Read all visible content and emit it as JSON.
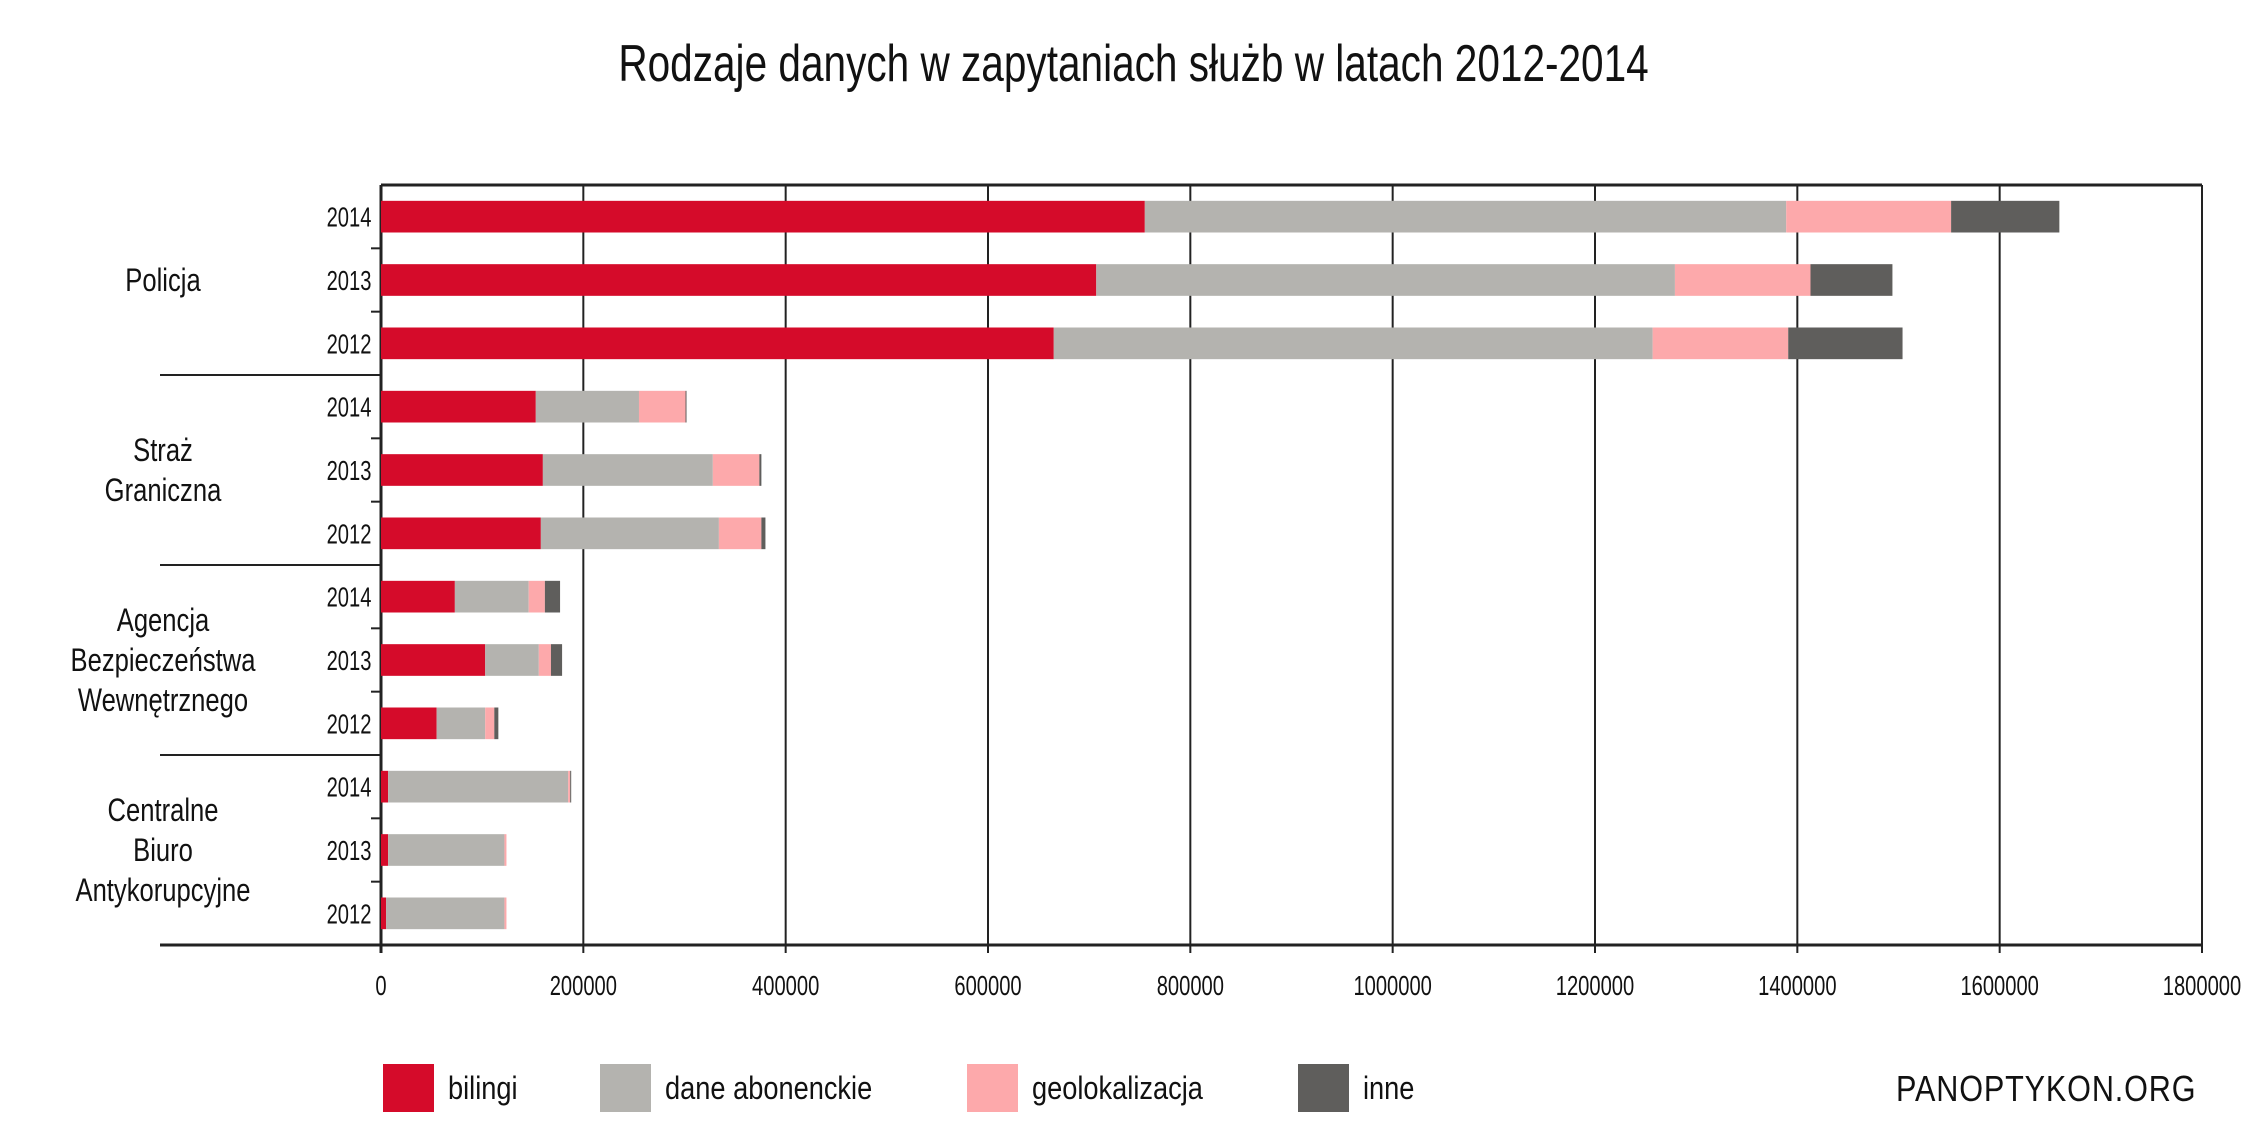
{
  "chart_data": {
    "type": "bar",
    "orientation": "horizontal",
    "stacked": true,
    "title": "Rodzaje danych w zapytaniach służb w latach 2012-2014",
    "xlabel": "",
    "ylabel": "",
    "xlim": [
      0,
      1800000
    ],
    "xticks": [
      "0",
      "200000",
      "400000",
      "600000",
      "800000",
      "1000000",
      "1200000",
      "1400000",
      "1600000",
      "1800000"
    ],
    "grid": true,
    "legend_position": "bottom",
    "groups": [
      {
        "label": [
          "Policja"
        ],
        "years": [
          "2014",
          "2013",
          "2012"
        ]
      },
      {
        "label": [
          "Straż",
          "Graniczna"
        ],
        "years": [
          "2014",
          "2013",
          "2012"
        ]
      },
      {
        "label": [
          "Agencja",
          "Bezpieczeństwa",
          "Wewnętrznego"
        ],
        "years": [
          "2014",
          "2013",
          "2012"
        ]
      },
      {
        "label": [
          "Centralne",
          "Biuro",
          "Antykorupcyjne"
        ],
        "years": [
          "2014",
          "2013",
          "2012"
        ]
      }
    ],
    "series": [
      {
        "name": "bilingi",
        "color": "#d50b2a",
        "values": [
          755000,
          707000,
          665000,
          153000,
          160000,
          158000,
          73000,
          103000,
          55000,
          7000,
          7000,
          5000
        ]
      },
      {
        "name": "dane abonenckie",
        "color": "#b4b3af",
        "values": [
          634000,
          572000,
          592000,
          102000,
          168000,
          176000,
          73000,
          53000,
          48000,
          178000,
          115000,
          117000
        ]
      },
      {
        "name": "geolokalizacja",
        "color": "#fda9ab",
        "values": [
          163000,
          134000,
          134000,
          46000,
          46000,
          42000,
          16000,
          12000,
          9000,
          2000,
          2000,
          2000
        ]
      },
      {
        "name": "inne",
        "color": "#5f5e5c",
        "values": [
          107000,
          81000,
          113000,
          1000,
          2000,
          4000,
          15000,
          11000,
          4000,
          1000,
          0,
          0
        ]
      }
    ]
  },
  "legend": [
    "bilingi",
    "dane abonenckie",
    "geolokalizacja",
    "inne"
  ],
  "brand": "PANOPTYKON.ORG"
}
